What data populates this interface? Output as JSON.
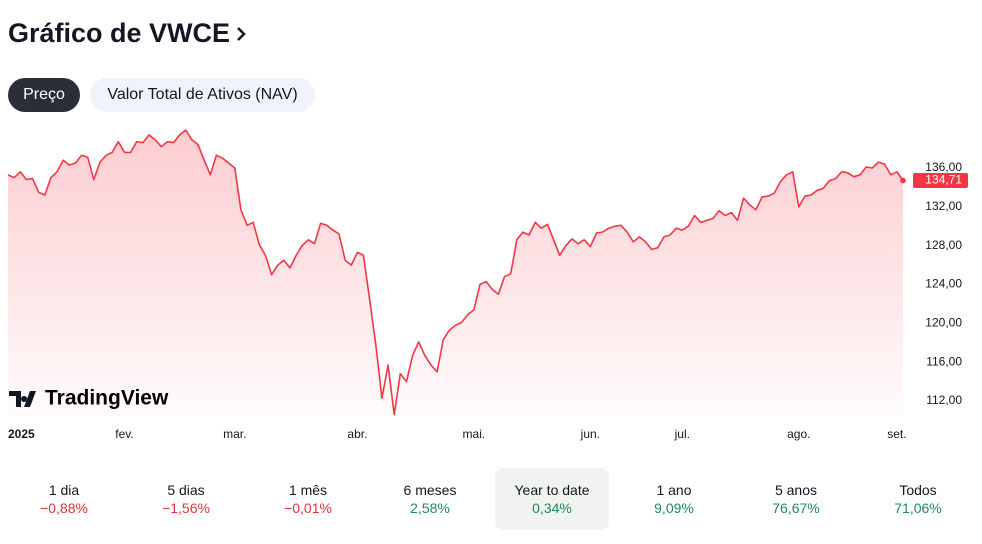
{
  "header": {
    "title": "Gráfico de VWCE"
  },
  "tabs": [
    {
      "label": "Preço",
      "selected": true
    },
    {
      "label": "Valor Total de Ativos (NAV)",
      "selected": false
    }
  ],
  "watermark": "TradingView",
  "chart_data": {
    "type": "line",
    "color": "#f23645",
    "xlim": [
      0,
      146
    ],
    "xticks": [
      {
        "value": 3,
        "label": "2025"
      },
      {
        "value": 19,
        "label": "fev."
      },
      {
        "value": 37,
        "label": "mar."
      },
      {
        "value": 57,
        "label": "abr."
      },
      {
        "value": 76,
        "label": "mai."
      },
      {
        "value": 95,
        "label": "jun."
      },
      {
        "value": 110,
        "label": "jul."
      },
      {
        "value": 129,
        "label": "ago."
      },
      {
        "value": 145,
        "label": "set."
      }
    ],
    "ylim": [
      110.5,
      141
    ],
    "yticks": [
      {
        "value": 112,
        "label": "112,00"
      },
      {
        "value": 116,
        "label": "116,00"
      },
      {
        "value": 120,
        "label": "120,00"
      },
      {
        "value": 124,
        "label": "124,00"
      },
      {
        "value": 128,
        "label": "128,00"
      },
      {
        "value": 132,
        "label": "132,00"
      },
      {
        "value": 136,
        "label": "136,00"
      }
    ],
    "price_label": "134,71",
    "values": [
      135.3,
      135.0,
      135.6,
      134.8,
      134.9,
      133.5,
      133.2,
      135.0,
      135.6,
      136.8,
      136.3,
      136.5,
      137.3,
      137.1,
      134.8,
      136.6,
      137.3,
      137.6,
      138.7,
      137.6,
      137.6,
      138.7,
      138.6,
      139.4,
      138.9,
      138.2,
      138.7,
      138.6,
      139.4,
      139.9,
      138.9,
      138.4,
      136.8,
      135.3,
      137.3,
      137.0,
      136.5,
      136.0,
      131.7,
      130.1,
      130.4,
      128.1,
      127.0,
      125.0,
      126.0,
      126.5,
      125.7,
      127.0,
      128.0,
      128.6,
      128.2,
      130.3,
      130.1,
      129.6,
      129.2,
      126.5,
      126.0,
      127.3,
      127.0,
      122.4,
      117.8,
      112.3,
      115.7,
      110.6,
      114.8,
      114.0,
      116.7,
      118.1,
      116.7,
      115.7,
      115.0,
      118.3,
      119.3,
      119.8,
      120.1,
      120.9,
      121.4,
      124.0,
      124.3,
      123.5,
      123.0,
      124.8,
      125.1,
      128.6,
      129.4,
      129.1,
      130.4,
      129.8,
      130.2,
      128.6,
      127.0,
      128.0,
      128.7,
      128.2,
      128.6,
      127.9,
      129.3,
      129.4,
      129.8,
      130.0,
      130.1,
      129.4,
      128.4,
      128.9,
      128.4,
      127.6,
      127.8,
      128.9,
      129.1,
      129.8,
      129.6,
      130.0,
      131.1,
      130.4,
      130.6,
      130.8,
      131.6,
      131.1,
      131.4,
      130.6,
      132.9,
      132.2,
      131.7,
      133.0,
      133.1,
      133.4,
      134.6,
      135.3,
      135.6,
      132.0,
      133.1,
      133.2,
      133.7,
      133.9,
      134.7,
      134.9,
      135.6,
      135.5,
      135.1,
      135.3,
      136.1,
      136.0,
      136.6,
      136.4,
      135.3,
      135.6,
      134.71
    ]
  },
  "periods": [
    {
      "label": "1 dia",
      "change": "−0,88%",
      "color": "#e5303c",
      "selected": false
    },
    {
      "label": "5 dias",
      "change": "−1,56%",
      "color": "#e5303c",
      "selected": false
    },
    {
      "label": "1 mês",
      "change": "−0,01%",
      "color": "#e5303c",
      "selected": false
    },
    {
      "label": "6 meses",
      "change": "2,58%",
      "color": "#1f8a5c",
      "selected": false
    },
    {
      "label": "Year to date",
      "change": "0,34%",
      "color": "#1f8a5c",
      "selected": true
    },
    {
      "label": "1 ano",
      "change": "9,09%",
      "color": "#1f8a5c",
      "selected": false
    },
    {
      "label": "5 anos",
      "change": "76,67%",
      "color": "#1f8a5c",
      "selected": false
    },
    {
      "label": "Todos",
      "change": "71,06%",
      "color": "#1f8a5c",
      "selected": false
    }
  ]
}
